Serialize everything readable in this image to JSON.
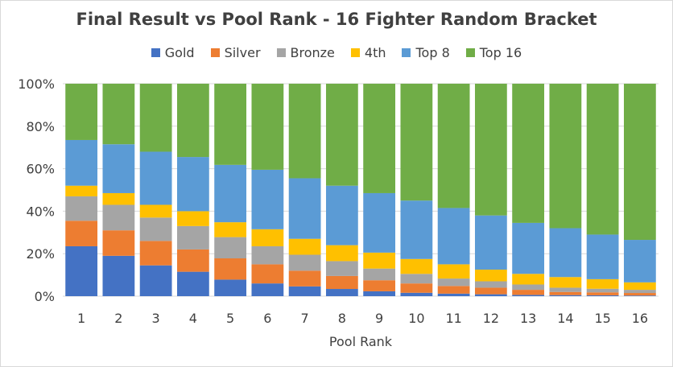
{
  "chart_data": {
    "type": "bar",
    "stacked": true,
    "title": "Final Result vs Pool Rank - 16 Fighter Random Bracket",
    "xlabel": "Pool Rank",
    "ylabel": "",
    "ylim": [
      0,
      100
    ],
    "y_ticks": [
      "0%",
      "20%",
      "40%",
      "60%",
      "80%",
      "100%"
    ],
    "grid": true,
    "legend_position": "top",
    "categories": [
      "1",
      "2",
      "3",
      "4",
      "5",
      "6",
      "7",
      "8",
      "9",
      "10",
      "11",
      "12",
      "13",
      "14",
      "15",
      "16"
    ],
    "series": [
      {
        "name": "Gold",
        "color": "#4472c4",
        "values": [
          23.5,
          19,
          14.5,
          11.5,
          7.8,
          6,
          4.6,
          3.4,
          2.3,
          1.6,
          1.2,
          0.9,
          0.6,
          0.5,
          0.4,
          0.3
        ]
      },
      {
        "name": "Silver",
        "color": "#ed7d31",
        "values": [
          12,
          12,
          11.5,
          10.5,
          10,
          9,
          7.4,
          6.1,
          5.2,
          4.4,
          3.6,
          3.1,
          2.4,
          1.5,
          1.4,
          1.2
        ]
      },
      {
        "name": "Bronze",
        "color": "#a5a5a5",
        "values": [
          11.5,
          12,
          11,
          11,
          10,
          8.5,
          7.5,
          7,
          5.5,
          4.5,
          3.5,
          3,
          2.5,
          2,
          1.7,
          1.5
        ]
      },
      {
        "name": "4th",
        "color": "#ffc000",
        "values": [
          5,
          5.5,
          6,
          7,
          7,
          8,
          7.5,
          7.5,
          7.5,
          7,
          6.7,
          5.5,
          5,
          5,
          4.5,
          3.5
        ]
      },
      {
        "name": "Top 8",
        "color": "#5b9bd5",
        "values": [
          21.5,
          23,
          25,
          25.5,
          27,
          28,
          28.5,
          28,
          28,
          27.5,
          26.5,
          25.5,
          24,
          23,
          21,
          20
        ]
      },
      {
        "name": "Top 16",
        "color": "#70ad47",
        "values": [
          26.5,
          28.5,
          32,
          34.5,
          38.2,
          40.5,
          44.5,
          48,
          51.5,
          55,
          58.5,
          62,
          65.5,
          68,
          71,
          73.5
        ]
      }
    ]
  }
}
